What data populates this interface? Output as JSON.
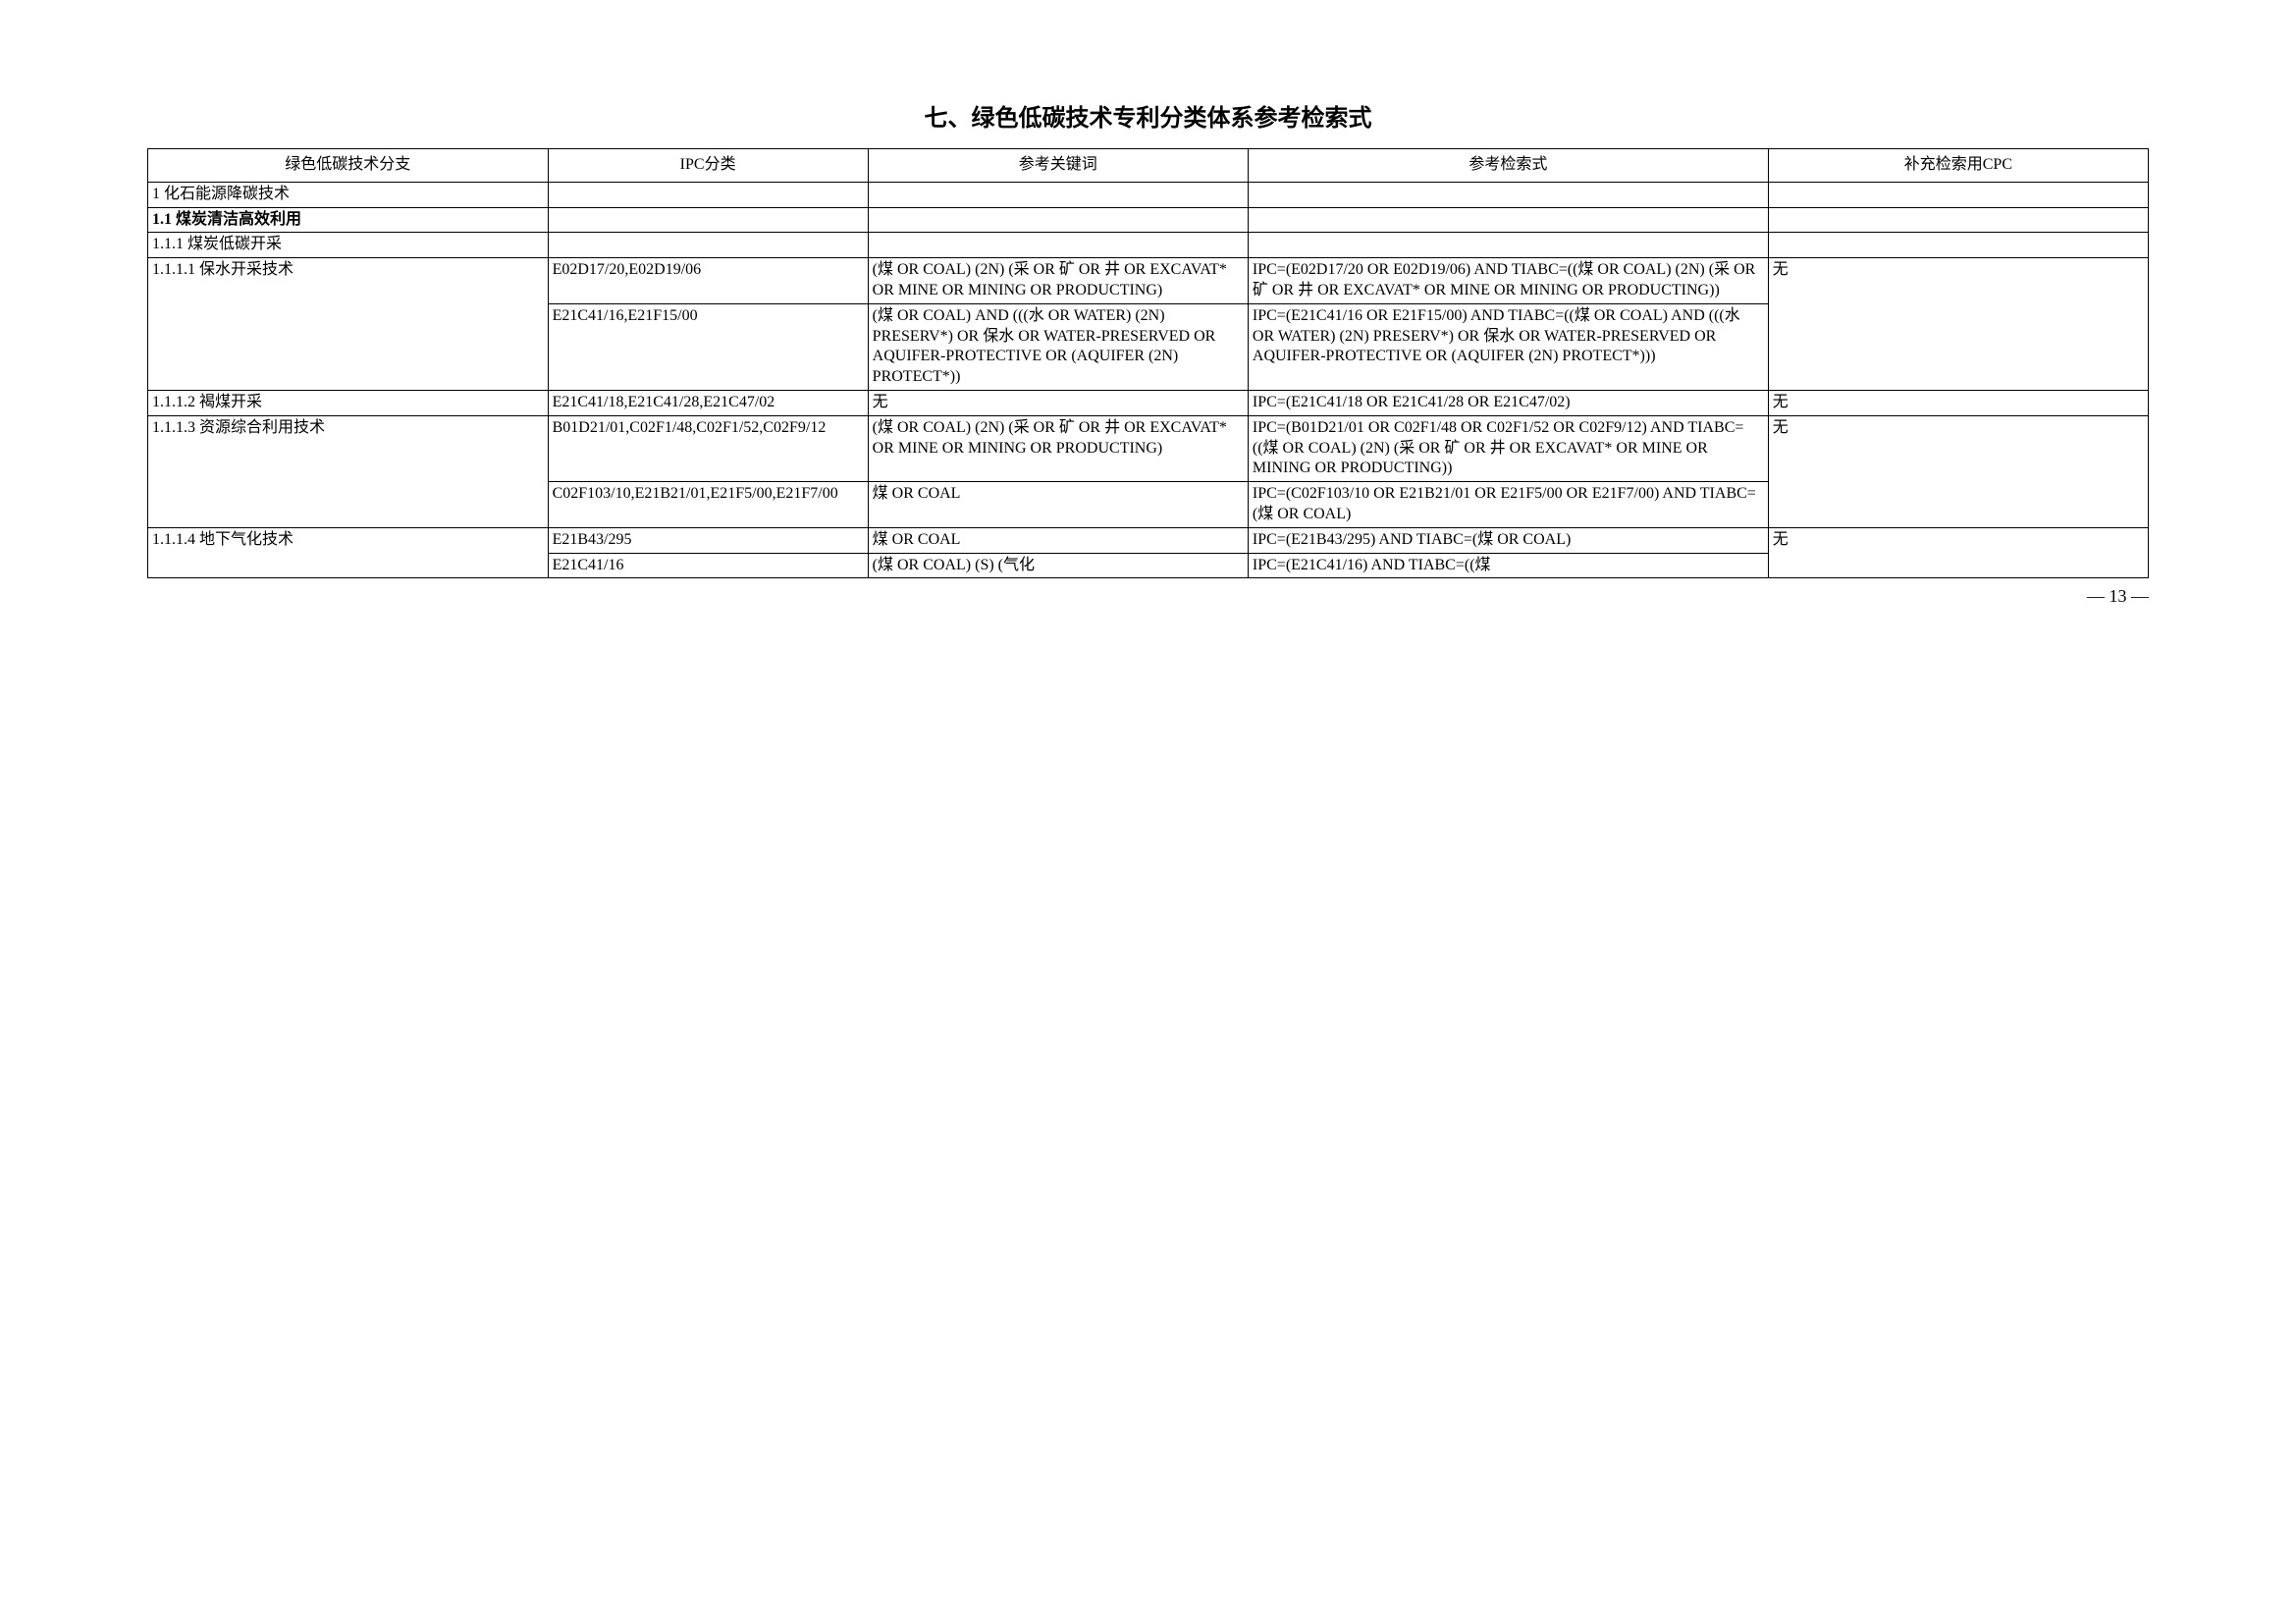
{
  "title": "七、绿色低碳技术专利分类体系参考检索式",
  "headers": {
    "col1": "绿色低碳技术分支",
    "col2": "IPC分类",
    "col3": "参考关键词",
    "col4": "参考检索式",
    "col5": "补充检索用CPC"
  },
  "rows": [
    {
      "branch": "1  化石能源降碳技术",
      "ipc": "",
      "keyword": "",
      "search": "",
      "cpc": "",
      "bold": false
    },
    {
      "branch": "1.1 煤炭清洁高效利用",
      "ipc": "",
      "keyword": "",
      "search": "",
      "cpc": "",
      "bold": true
    },
    {
      "branch": "1.1.1 煤炭低碳开采",
      "ipc": "",
      "keyword": "",
      "search": "",
      "cpc": "",
      "bold": false
    },
    {
      "branch": "1.1.1.1 保水开采技术",
      "ipc": "E02D17/20,E02D19/06",
      "keyword": "(煤  OR COAL) (2N) (采 OR 矿 OR 井 OR EXCAVAT* OR MINE OR MINING OR PRODUCTING)",
      "search": "IPC=(E02D17/20 OR E02D19/06) AND TIABC=((煤  OR COAL) (2N) (采 OR 矿 OR 井 OR EXCAVAT* OR MINE OR MINING OR PRODUCTING))",
      "cpc": "无",
      "bold": false,
      "rowspan_branch": 2,
      "rowspan_cpc": 2
    },
    {
      "ipc": "E21C41/16,E21F15/00",
      "keyword": "(煤  OR COAL) AND (((水 OR WATER) (2N) PRESERV*) OR 保水 OR WATER-PRESERVED OR AQUIFER-PROTECTIVE OR (AQUIFER (2N) PROTECT*))",
      "search": "IPC=(E21C41/16 OR E21F15/00) AND TIABC=((煤  OR COAL) AND (((水  OR WATER) (2N) PRESERV*) OR 保水 OR WATER-PRESERVED OR AQUIFER-PROTECTIVE OR (AQUIFER (2N) PROTECT*)))",
      "continuation": true
    },
    {
      "branch": "1.1.1.2 褐煤开采",
      "ipc": "E21C41/18,E21C41/28,E21C47/02",
      "keyword": "无",
      "search": "IPC=(E21C41/18 OR E21C41/28 OR E21C47/02)",
      "cpc": "无",
      "bold": false
    },
    {
      "branch": "1.1.1.3 资源综合利用技术",
      "ipc": "B01D21/01,C02F1/48,C02F1/52,C02F9/12",
      "keyword": "(煤  OR COAL) (2N) (采 OR 矿 OR 井 OR EXCAVAT* OR MINE OR MINING OR PRODUCTING)",
      "search": "IPC=(B01D21/01 OR C02F1/48 OR C02F1/52 OR C02F9/12) AND TIABC=((煤  OR COAL) (2N) (采 OR 矿 OR 井 OR EXCAVAT* OR MINE OR MINING OR PRODUCTING))",
      "cpc": "无",
      "bold": false,
      "rowspan_branch": 2,
      "rowspan_cpc": 2
    },
    {
      "ipc": "C02F103/10,E21B21/01,E21F5/00,E21F7/00",
      "keyword": "煤  OR COAL",
      "search": "IPC=(C02F103/10 OR E21B21/01 OR E21F5/00 OR E21F7/00) AND TIABC=(煤  OR COAL)",
      "continuation": true
    },
    {
      "branch": "1.1.1.4 地下气化技术",
      "ipc": "E21B43/295",
      "keyword": "煤  OR COAL",
      "search": "IPC=(E21B43/295) AND TIABC=(煤 OR COAL)",
      "cpc": "无",
      "bold": false,
      "rowspan_branch": 2,
      "rowspan_cpc": 2
    },
    {
      "ipc": "E21C41/16",
      "keyword": "(煤  OR COAL) (S) (气化",
      "search": "IPC=(E21C41/16) AND TIABC=((煤",
      "continuation": true
    }
  ],
  "page_number": "— 13 —"
}
